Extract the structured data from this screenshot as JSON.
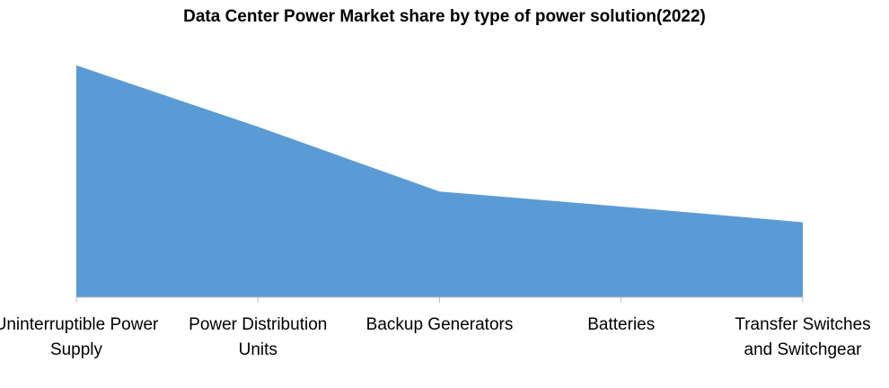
{
  "chart_data": {
    "type": "area",
    "title": "Data Center Power Market share by type of power solution(2022)",
    "categories": [
      "Uninterruptible Power Supply",
      "Power Distribution Units",
      "Backup Generators",
      "Batteries",
      "Transfer Switches and Switchgear"
    ],
    "series": [
      {
        "color": "#5b9bd5",
        "values": [
          34,
          25,
          15.5,
          13.3,
          11
        ]
      }
    ],
    "ylim": [
      0,
      37
    ]
  }
}
